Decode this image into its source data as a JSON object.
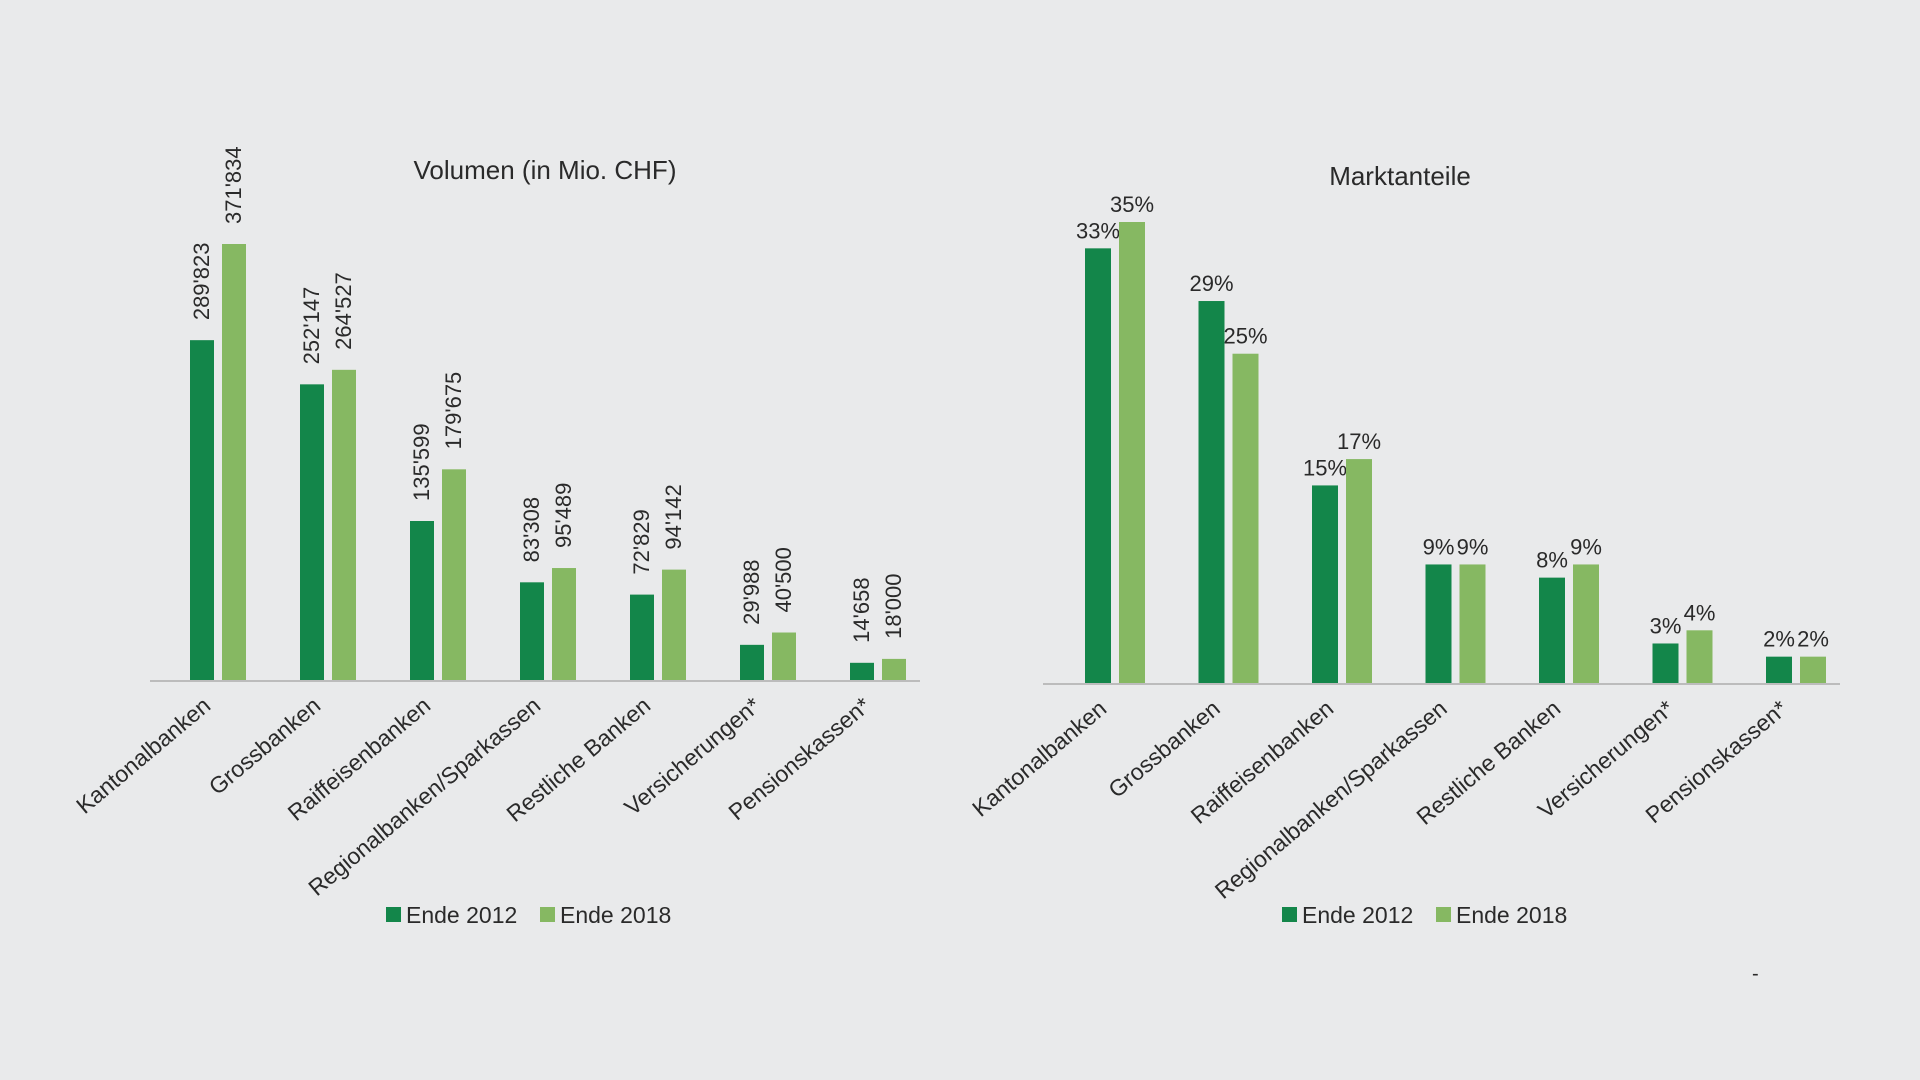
{
  "colors": {
    "s2012": "#13864a",
    "s2018": "#86b862",
    "axis": "#bcbcbc"
  },
  "legend": [
    {
      "label": "Ende 2012",
      "color": "#13864a"
    },
    {
      "label": "Ende 2018",
      "color": "#86b862"
    }
  ],
  "footer_mark": "-",
  "chart_data": [
    {
      "type": "bar",
      "title": "Volumen (in Mio. CHF)",
      "xlabel": "",
      "ylabel": "",
      "ylim": [
        0,
        400000
      ],
      "categories": [
        "Kantonalbanken",
        "Grossbanken",
        "Raiffeisenbanken",
        "Regionalbanken/Sparkassen",
        "Restliche Banken",
        "Versicherungen*",
        "Pensionskassen*"
      ],
      "series": [
        {
          "name": "Ende 2012",
          "values": [
            289823,
            252147,
            135599,
            83308,
            72829,
            29988,
            14658
          ],
          "labels": [
            "289'823",
            "252'147",
            "135'599",
            "83'308",
            "72'829",
            "29'988",
            "14'658"
          ]
        },
        {
          "name": "Ende 2018",
          "values": [
            371834,
            264527,
            179675,
            95489,
            94142,
            40500,
            18000
          ],
          "labels": [
            "371'834",
            "264'527",
            "179'675",
            "95'489",
            "94'142",
            "40'500",
            "18'000"
          ]
        }
      ],
      "legend": "bottom-center"
    },
    {
      "type": "bar",
      "title": "Marktanteile",
      "xlabel": "",
      "ylabel": "",
      "ylim": [
        0,
        36
      ],
      "categories": [
        "Kantonalbanken",
        "Grossbanken",
        "Raiffeisenbanken",
        "Regionalbanken/Sparkassen",
        "Restliche Banken",
        "Versicherungen*",
        "Pensionskassen*"
      ],
      "series": [
        {
          "name": "Ende 2012",
          "values": [
            33,
            29,
            15,
            9,
            8,
            3,
            2
          ],
          "labels": [
            "33%",
            "29%",
            "15%",
            "9%",
            "8%",
            "3%",
            "2%"
          ]
        },
        {
          "name": "Ende 2018",
          "values": [
            35,
            25,
            17,
            9,
            9,
            4,
            2
          ],
          "labels": [
            "35%",
            "25%",
            "17%",
            "9%",
            "9%",
            "4%",
            "2%"
          ]
        }
      ],
      "legend": "bottom-center"
    }
  ]
}
